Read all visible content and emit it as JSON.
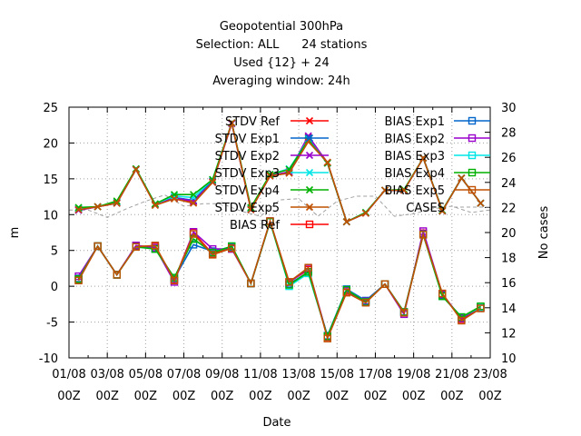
{
  "chart_data": {
    "type": "line",
    "title_lines": [
      "Geopotential 300hPa",
      "Selection: ALL      24 stations",
      "Used {12} + 24",
      "Averaging window: 24h"
    ],
    "xlabel": "Date",
    "ylabel": "m",
    "y2label": "No cases",
    "ylim": [
      -10,
      25
    ],
    "y2lim": [
      10,
      30
    ],
    "yticks": [
      -10,
      -5,
      0,
      5,
      10,
      15,
      20,
      25
    ],
    "y2ticks": [
      10,
      12,
      14,
      16,
      18,
      20,
      22,
      24,
      26,
      28,
      30
    ],
    "grid": true,
    "legend_position": "top-center",
    "x_dates": [
      "01/08",
      "02/08",
      "03/08",
      "04/08",
      "05/08",
      "06/08",
      "07/08",
      "08/08",
      "09/08",
      "10/08",
      "11/08",
      "12/08",
      "13/08",
      "14/08",
      "15/08",
      "16/08",
      "17/08",
      "18/08",
      "19/08",
      "20/08",
      "21/08",
      "22/08",
      "23/08"
    ],
    "xtick_labels": [
      {
        "top": "01/08",
        "bottom": "00Z"
      },
      {
        "top": "03/08",
        "bottom": "00Z"
      },
      {
        "top": "05/08",
        "bottom": "00Z"
      },
      {
        "top": "07/08",
        "bottom": "00Z"
      },
      {
        "top": "09/08",
        "bottom": "00Z"
      },
      {
        "top": "11/08",
        "bottom": "00Z"
      },
      {
        "top": "13/08",
        "bottom": "00Z"
      },
      {
        "top": "15/08",
        "bottom": "00Z"
      },
      {
        "top": "17/08",
        "bottom": "00Z"
      },
      {
        "top": "19/08",
        "bottom": "00Z"
      },
      {
        "top": "21/08",
        "bottom": "00Z"
      },
      {
        "top": "23/08",
        "bottom": "00Z"
      }
    ],
    "colors": {
      "ref": "#ff0000",
      "exp1": "#0066cc",
      "exp2": "#9900cc",
      "exp3": "#00e5e5",
      "exp4": "#00b000",
      "exp5": "#c05000",
      "cases": "#a0a0a0"
    },
    "series_order": [
      "STDV Ref",
      "STDV Exp1",
      "STDV Exp2",
      "STDV Exp3",
      "STDV Exp4",
      "STDV Exp5",
      "BIAS Ref",
      "BIAS Exp1",
      "BIAS Exp2",
      "BIAS Exp3",
      "BIAS Exp4",
      "BIAS Exp5"
    ],
    "series": [
      {
        "name": "STDV Ref",
        "color": "ref",
        "marker": "x",
        "x_offset": 0.5,
        "values": [
          10.7,
          11.1,
          11.6,
          16.3,
          11.4,
          12.3,
          11.8,
          14.6,
          22.8,
          10.7,
          15.4,
          15.8,
          20.8,
          17.3,
          9.0,
          10.2,
          13.4,
          13.4,
          17.9,
          10.5,
          15.1,
          11.6
        ]
      },
      {
        "name": "STDV Exp1",
        "color": "exp1",
        "marker": "x",
        "x_offset": 0.5,
        "values": [
          10.8,
          11.1,
          11.7,
          16.3,
          11.4,
          12.4,
          12.0,
          14.7,
          22.8,
          10.8,
          15.5,
          15.9,
          20.7,
          17.2,
          9.0,
          10.3,
          13.4,
          13.4,
          17.9,
          10.5,
          15.1,
          11.6
        ]
      },
      {
        "name": "STDV Exp2",
        "color": "exp2",
        "marker": "x",
        "x_offset": 0.5,
        "values": [
          10.6,
          11.1,
          11.6,
          16.3,
          11.4,
          12.3,
          11.9,
          14.5,
          22.7,
          10.7,
          15.4,
          16.0,
          21.0,
          17.2,
          9.0,
          10.2,
          13.4,
          13.4,
          17.9,
          10.6,
          15.1,
          11.6
        ]
      },
      {
        "name": "STDV Exp3",
        "color": "exp3",
        "marker": "x",
        "x_offset": 0.5,
        "values": [
          10.9,
          11.1,
          11.8,
          16.4,
          11.5,
          12.6,
          12.4,
          14.9,
          22.8,
          10.9,
          15.6,
          16.4,
          20.5,
          17.2,
          9.0,
          10.3,
          13.4,
          13.5,
          17.9,
          10.6,
          15.1,
          11.6
        ]
      },
      {
        "name": "STDV Exp4",
        "color": "exp4",
        "marker": "x",
        "x_offset": 0.5,
        "values": [
          11.0,
          11.1,
          11.9,
          16.4,
          11.5,
          12.8,
          12.8,
          14.9,
          22.8,
          11.0,
          15.6,
          16.3,
          20.4,
          17.2,
          9.0,
          10.3,
          13.4,
          13.5,
          17.9,
          10.6,
          15.1,
          11.6
        ]
      },
      {
        "name": "STDV Exp5",
        "color": "exp5",
        "marker": "x",
        "x_offset": 0.5,
        "values": [
          10.7,
          11.1,
          11.6,
          16.3,
          11.3,
          12.2,
          11.6,
          14.5,
          22.8,
          10.7,
          15.4,
          15.8,
          20.2,
          17.3,
          9.0,
          10.2,
          13.4,
          13.4,
          17.9,
          10.5,
          15.1,
          11.6
        ]
      },
      {
        "name": "BIAS Ref",
        "color": "ref",
        "marker": "square",
        "x_offset": 0.5,
        "values": [
          0.9,
          5.6,
          1.6,
          5.6,
          5.6,
          0.9,
          7.5,
          4.5,
          5.4,
          0.4,
          9.0,
          0.6,
          2.3,
          -7.1,
          -0.8,
          -2.2,
          0.3,
          -3.6,
          7.4,
          -1.2,
          -4.6,
          -3.0
        ]
      },
      {
        "name": "BIAS Exp1",
        "color": "exp1",
        "marker": "square",
        "x_offset": 0.5,
        "values": [
          1.1,
          5.6,
          1.6,
          5.6,
          5.3,
          1.1,
          5.8,
          4.9,
          5.5,
          0.4,
          9.0,
          0.3,
          2.0,
          -6.9,
          -0.4,
          -2.0,
          0.3,
          -3.6,
          7.3,
          -1.3,
          -4.4,
          -2.9
        ]
      },
      {
        "name": "BIAS Exp2",
        "color": "exp2",
        "marker": "square",
        "x_offset": 0.5,
        "values": [
          1.4,
          5.6,
          1.6,
          5.7,
          5.4,
          0.6,
          7.6,
          5.2,
          5.2,
          0.4,
          9.1,
          0.5,
          2.5,
          -7.0,
          -0.6,
          -2.1,
          0.3,
          -3.9,
          7.7,
          -1.1,
          -4.5,
          -2.9
        ]
      },
      {
        "name": "BIAS Exp3",
        "color": "exp3",
        "marker": "square",
        "x_offset": 0.5,
        "values": [
          1.0,
          5.6,
          1.6,
          5.5,
          5.2,
          1.2,
          6.6,
          4.7,
          5.6,
          0.4,
          9.0,
          0.0,
          1.8,
          -7.0,
          -0.5,
          -2.2,
          0.3,
          -3.6,
          7.2,
          -1.4,
          -4.3,
          -2.9
        ]
      },
      {
        "name": "BIAS Exp4",
        "color": "exp4",
        "marker": "square",
        "x_offset": 0.5,
        "values": [
          1.0,
          5.6,
          1.6,
          5.5,
          5.2,
          1.2,
          6.6,
          4.7,
          5.6,
          0.4,
          9.0,
          0.2,
          2.0,
          -7.0,
          -0.5,
          -2.2,
          0.3,
          -3.6,
          7.2,
          -1.4,
          -4.3,
          -2.8
        ]
      },
      {
        "name": "BIAS Exp5",
        "color": "exp5",
        "marker": "square",
        "x_offset": 0.5,
        "values": [
          0.8,
          5.6,
          1.6,
          5.5,
          5.7,
          0.8,
          7.3,
          4.4,
          5.3,
          0.4,
          9.1,
          0.6,
          2.6,
          -7.3,
          -0.9,
          -2.3,
          0.3,
          -3.7,
          7.2,
          -1.0,
          -4.8,
          -3.1
        ]
      },
      {
        "name": "CASES",
        "color": "cases",
        "marker": "none",
        "dashed": true,
        "axis": "y2",
        "x_offset": 0,
        "values": [
          21.8,
          21.8,
          21.2,
          21.9,
          22.5,
          23.0,
          22.1,
          22.3,
          22.3,
          21.7,
          21.3,
          22.6,
          22.7,
          21.3,
          22.5,
          22.9,
          22.9,
          21.3,
          21.5,
          21.9,
          22.1,
          21.6,
          21.8
        ]
      }
    ]
  }
}
